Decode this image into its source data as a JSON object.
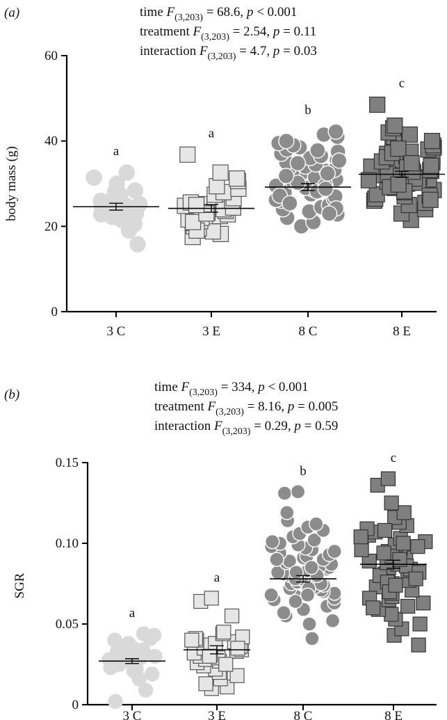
{
  "panels": [
    {
      "label": "(a)",
      "stats": [
        {
          "term": "time",
          "df": "(3,203)",
          "value": " = 68.6, ",
          "p": " < 0.001"
        },
        {
          "term": "treatment",
          "df": "(3,203)",
          "value": " = 2.54, ",
          "p": " = 0.11"
        },
        {
          "term": "interaction",
          "df": "(3,203)",
          "value": " = 4.7, ",
          "p": " = 0.03"
        }
      ]
    },
    {
      "label": "(b)",
      "stats": [
        {
          "term": "time",
          "df": "(3,203)",
          "value": " = 334, ",
          "p": " < 0.001"
        },
        {
          "term": "treatment",
          "df": "(3,203)",
          "value": " = 8.16, ",
          "p": " = 0.005"
        },
        {
          "term": "interaction",
          "df": "(3,203)",
          "value": " = 0.29, ",
          "p": " = 0.59"
        }
      ]
    }
  ],
  "chart_data": [
    {
      "type": "scatter",
      "panel": "(a)",
      "ylabel": "body mass (g)",
      "ylim": [
        0,
        60
      ],
      "yticks": [
        0,
        20,
        40,
        60
      ],
      "categories": [
        "3 C",
        "3 E",
        "8 C",
        "8 E"
      ],
      "series": [
        {
          "category": "3 C",
          "marker": "circle",
          "fill": "#d9d9d9",
          "stroke": "#d9d9d9",
          "letter": "a",
          "mean": 24.6,
          "sem": 0.8,
          "values": [
            15.8,
            19.0,
            20.5,
            21.5,
            22.0,
            22.8,
            23.0,
            23.5,
            24.0,
            24.5,
            24.8,
            25.0,
            25.2,
            25.6,
            26.0,
            26.4,
            27.0,
            27.4,
            28.0,
            28.4,
            30.0,
            31.4,
            32.6,
            22.2
          ]
        },
        {
          "category": "3 E",
          "marker": "square",
          "fill": "#e6e6e6",
          "stroke": "#555555",
          "letter": "a",
          "mean": 24.2,
          "sem": 0.9,
          "values": [
            17.5,
            18.2,
            18.8,
            19.5,
            20.0,
            20.8,
            21.2,
            21.6,
            22.0,
            22.4,
            22.8,
            23.2,
            23.6,
            24.0,
            24.4,
            24.8,
            25.2,
            25.6,
            26.0,
            26.6,
            27.4,
            28.0,
            28.8,
            29.4,
            30.6,
            31.2,
            32.6,
            36.8,
            19.0,
            21.0,
            23.0,
            25.0
          ]
        },
        {
          "category": "8 C",
          "marker": "circle",
          "fill": "#8c8c8c",
          "stroke": "#ffffff",
          "letter": "b",
          "mean": 29.2,
          "sem": 0.8,
          "values": [
            20.0,
            21.0,
            22.0,
            22.8,
            23.5,
            24.0,
            24.5,
            25.0,
            25.5,
            26.0,
            26.5,
            27.0,
            27.5,
            28.0,
            28.5,
            29.0,
            29.5,
            30.0,
            30.5,
            31.0,
            31.5,
            32.0,
            32.5,
            33.0,
            33.5,
            34.0,
            34.5,
            35.0,
            35.5,
            36.0,
            36.5,
            37.0,
            37.5,
            38.0,
            38.5,
            39.0,
            39.5,
            40.0,
            41.0,
            41.5,
            42.2,
            30.2,
            28.2,
            26.2,
            24.2,
            31.8,
            33.2,
            27.2,
            29.6,
            35.4,
            25.4,
            23.0,
            37.8,
            32.4,
            28.8,
            34.8
          ]
        },
        {
          "category": "8 E",
          "marker": "square",
          "fill": "#7f7f7f",
          "stroke": "#333333",
          "letter": "c",
          "mean": 32.2,
          "sem": 0.7,
          "values": [
            21.5,
            23.0,
            24.0,
            25.0,
            25.5,
            26.0,
            26.5,
            27.0,
            27.5,
            28.0,
            28.5,
            29.0,
            29.5,
            30.0,
            30.5,
            31.0,
            31.5,
            32.0,
            32.5,
            33.0,
            33.5,
            34.0,
            34.5,
            35.0,
            35.5,
            36.0,
            36.5,
            37.0,
            37.5,
            38.0,
            38.5,
            39.0,
            39.5,
            40.0,
            40.5,
            41.0,
            41.5,
            42.0,
            43.0,
            43.6,
            48.5,
            30.2,
            31.2,
            32.2,
            33.2,
            34.2,
            35.2,
            29.2,
            28.2,
            36.2,
            37.2,
            27.2,
            26.2,
            38.2,
            31.8,
            33.8,
            30.8,
            32.8,
            34.8,
            29.8
          ]
        }
      ]
    },
    {
      "type": "scatter",
      "panel": "(b)",
      "ylabel": "SGR",
      "ylim": [
        0,
        0.15
      ],
      "yticks": [
        0,
        0.05,
        0.1,
        0.15
      ],
      "ytick_labels": [
        "0",
        "0.05",
        "0.10",
        "0.15"
      ],
      "categories": [
        "3 C",
        "3 E",
        "8 C",
        "8 E"
      ],
      "series": [
        {
          "category": "3 C",
          "marker": "circle",
          "fill": "#d9d9d9",
          "stroke": "#d9d9d9",
          "letter": "a",
          "mean": 0.027,
          "sem": 0.0015,
          "values": [
            0.002,
            0.009,
            0.016,
            0.019,
            0.021,
            0.022,
            0.023,
            0.024,
            0.025,
            0.026,
            0.027,
            0.028,
            0.029,
            0.03,
            0.031,
            0.032,
            0.033,
            0.034,
            0.035,
            0.036,
            0.038,
            0.04,
            0.041,
            0.043,
            0.044,
            0.026,
            0.029,
            0.031
          ]
        },
        {
          "category": "3 E",
          "marker": "square",
          "fill": "#e6e6e6",
          "stroke": "#555555",
          "letter": "a",
          "mean": 0.034,
          "sem": 0.0025,
          "values": [
            0.01,
            0.011,
            0.013,
            0.016,
            0.018,
            0.02,
            0.022,
            0.024,
            0.026,
            0.027,
            0.028,
            0.029,
            0.03,
            0.031,
            0.032,
            0.033,
            0.034,
            0.035,
            0.036,
            0.037,
            0.038,
            0.039,
            0.04,
            0.041,
            0.042,
            0.044,
            0.045,
            0.055,
            0.064,
            0.066,
            0.025,
            0.03,
            0.035,
            0.04
          ]
        },
        {
          "category": "8 C",
          "marker": "circle",
          "fill": "#8c8c8c",
          "stroke": "#ffffff",
          "letter": "b",
          "mean": 0.078,
          "sem": 0.002,
          "values": [
            0.041,
            0.05,
            0.052,
            0.055,
            0.057,
            0.059,
            0.061,
            0.063,
            0.065,
            0.066,
            0.067,
            0.068,
            0.069,
            0.07,
            0.071,
            0.072,
            0.073,
            0.074,
            0.075,
            0.076,
            0.077,
            0.078,
            0.079,
            0.08,
            0.081,
            0.082,
            0.083,
            0.084,
            0.085,
            0.086,
            0.087,
            0.088,
            0.089,
            0.09,
            0.091,
            0.092,
            0.093,
            0.094,
            0.095,
            0.096,
            0.097,
            0.098,
            0.099,
            0.1,
            0.101,
            0.102,
            0.104,
            0.106,
            0.108,
            0.11,
            0.112,
            0.114,
            0.119,
            0.131,
            0.132,
            0.075,
            0.078,
            0.08,
            0.072,
            0.085,
            0.068,
            0.09,
            0.064,
            0.082
          ]
        },
        {
          "category": "8 E",
          "marker": "square",
          "fill": "#7f7f7f",
          "stroke": "#333333",
          "letter": "c",
          "mean": 0.087,
          "sem": 0.0025,
          "values": [
            0.037,
            0.043,
            0.047,
            0.05,
            0.053,
            0.056,
            0.059,
            0.061,
            0.063,
            0.065,
            0.067,
            0.069,
            0.071,
            0.073,
            0.075,
            0.077,
            0.079,
            0.081,
            0.083,
            0.085,
            0.087,
            0.089,
            0.091,
            0.093,
            0.095,
            0.097,
            0.099,
            0.101,
            0.103,
            0.105,
            0.107,
            0.109,
            0.111,
            0.113,
            0.116,
            0.119,
            0.125,
            0.136,
            0.14,
            0.08,
            0.084,
            0.088,
            0.092,
            0.076,
            0.096,
            0.07,
            0.1,
            0.086,
            0.09,
            0.082,
            0.078,
            0.094,
            0.074,
            0.098,
            0.066,
            0.104,
            0.06,
            0.108
          ]
        }
      ]
    }
  ]
}
